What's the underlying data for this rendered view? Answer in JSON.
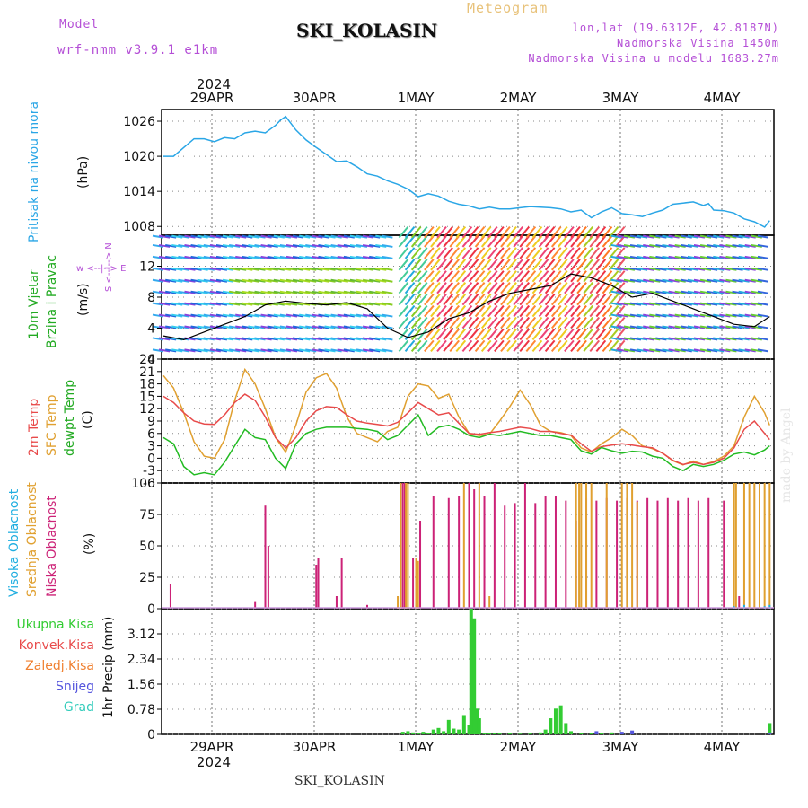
{
  "header": {
    "model_label": "Model",
    "model_version": "wrf-nmm_v3.9.1 e1km",
    "station": "SKI_KOLASIN",
    "meteogram": "Meteogram",
    "lonlat": "lon,lat (19.6312E, 42.8187N)",
    "elevation": "Nadmorska Visina 1450m",
    "model_elevation": "Nadmorska Visina u modelu 1683.27m"
  },
  "footer": {
    "station": "SKI_KOLASIN",
    "made_by": "made by Angel"
  },
  "colors": {
    "pressure": "#2aa6e6",
    "temp2m": "#e84a4a",
    "sfc_temp": "#e0a030",
    "dewpt": "#22bb22",
    "high_cloud": "#20aee0",
    "mid_cloud": "#e0a030",
    "low_cloud": "#cc2277",
    "precip_total": "#33cc33",
    "precip_conv": "#e84a4a",
    "precip_frozen": "#f08030",
    "snow": "#5555dd",
    "hail": "#33ccbb",
    "ylabel_purple": "#b44ed6"
  },
  "chart_data": [
    {
      "type": "line",
      "panel": "pressure",
      "year": "2024",
      "top_ticks": [
        "29APR",
        "30APR",
        "1MAY",
        "2MAY",
        "3MAY",
        "4MAY"
      ],
      "ylabel": "Pritisak na nivou mora",
      "unit": "(hPa)",
      "yticks": [
        1008,
        1014,
        1020,
        1026
      ],
      "ylim": [
        1006.5,
        1028
      ],
      "grid": true,
      "series": [
        {
          "x": [
            0,
            0.1,
            0.2,
            0.3,
            0.4,
            0.5,
            0.6,
            0.7,
            0.8,
            0.9,
            1.0,
            1.1,
            1.15,
            1.2,
            1.3,
            1.4,
            1.5,
            1.6,
            1.7,
            1.8,
            1.9,
            2.0,
            2.1,
            2.2,
            2.3,
            2.4,
            2.5,
            2.6,
            2.7,
            2.8,
            2.9,
            3.0,
            3.1,
            3.2,
            3.3,
            3.4,
            3.5,
            3.6,
            3.7,
            3.8,
            3.9,
            4.0,
            4.1,
            4.2,
            4.3,
            4.4,
            4.5,
            4.6,
            4.7,
            4.8,
            4.9,
            5.0,
            5.1,
            5.2,
            5.3,
            5.35,
            5.4,
            5.5,
            5.6,
            5.7,
            5.8,
            5.9,
            5.95
          ],
          "values": [
            1020,
            1020,
            1021.5,
            1023,
            1023,
            1022.5,
            1023.2,
            1023,
            1024,
            1024.3,
            1024,
            1025.3,
            1026.2,
            1026.8,
            1024.5,
            1022.8,
            1021.5,
            1020.3,
            1019.1,
            1019.2,
            1018.2,
            1017,
            1016.6,
            1015.8,
            1015.2,
            1014.4,
            1013.1,
            1013.6,
            1013.2,
            1012.3,
            1011.8,
            1011.5,
            1011,
            1011.3,
            1011,
            1011,
            1011.2,
            1011.4,
            1011.3,
            1011.2,
            1011,
            1010.5,
            1010.8,
            1009.5,
            1010.5,
            1011.2,
            1010.2,
            1010,
            1009.7,
            1010.3,
            1010.8,
            1011.8,
            1012,
            1012.2,
            1011.6,
            1011.9,
            1010.8,
            1010.7,
            1010.3,
            1009.3,
            1008.8,
            1007.9,
            1009
          ]
        }
      ]
    },
    {
      "type": "line",
      "panel": "wind",
      "ylabel": "10m Vjetar Brzina i Pravac",
      "unit": "(m/s)",
      "yticks": [
        0,
        4,
        8,
        12
      ],
      "ylim": [
        0,
        16
      ],
      "grid": true,
      "series": [
        {
          "x": [
            0,
            0.2,
            0.4,
            0.6,
            0.8,
            1.0,
            1.2,
            1.4,
            1.6,
            1.8,
            2.0,
            2.2,
            2.4,
            2.6,
            2.8,
            3.0,
            3.2,
            3.4,
            3.6,
            3.8,
            4.0,
            4.2,
            4.4,
            4.6,
            4.8,
            5.0,
            5.2,
            5.4,
            5.6,
            5.8,
            5.95
          ],
          "values": [
            3,
            2.5,
            3.5,
            4.5,
            5.5,
            7,
            7.5,
            7.2,
            7,
            7.3,
            6.5,
            4,
            2.8,
            3.5,
            5.2,
            6,
            7.5,
            8.5,
            9,
            9.5,
            11,
            10.5,
            9.5,
            8,
            8.5,
            7.5,
            6.5,
            5.5,
            4.5,
            4.2,
            5.5
          ]
        }
      ]
    },
    {
      "type": "line",
      "panel": "temperature",
      "ylabels": [
        "2m Temp",
        "SFC Temp",
        "dewpt Temp"
      ],
      "unit": "(C)",
      "yticks": [
        -6,
        -3,
        0,
        3,
        6,
        9,
        12,
        15,
        18,
        21,
        24
      ],
      "ylim": [
        -6,
        24
      ],
      "grid": true,
      "series": [
        {
          "name": "2m Temp",
          "x": [
            0,
            0.1,
            0.2,
            0.3,
            0.4,
            0.5,
            0.6,
            0.7,
            0.8,
            0.9,
            1.0,
            1.1,
            1.2,
            1.3,
            1.4,
            1.5,
            1.6,
            1.7,
            1.8,
            1.9,
            2.0,
            2.1,
            2.2,
            2.3,
            2.4,
            2.5,
            2.6,
            2.7,
            2.8,
            2.9,
            3.0,
            3.1,
            3.2,
            3.3,
            3.4,
            3.5,
            3.6,
            3.7,
            3.8,
            3.9,
            4.0,
            4.1,
            4.2,
            4.3,
            4.4,
            4.5,
            4.6,
            4.7,
            4.8,
            4.9,
            5.0,
            5.1,
            5.2,
            5.3,
            5.4,
            5.5,
            5.6,
            5.7,
            5.8,
            5.9,
            5.95
          ],
          "values": [
            15,
            13.5,
            11,
            9,
            8.3,
            8.2,
            10.5,
            13.5,
            15.5,
            14,
            10,
            5,
            2.5,
            5,
            9,
            11.5,
            12.5,
            12.3,
            10.5,
            9,
            8.5,
            8.2,
            7.8,
            8.7,
            11,
            13.5,
            12,
            10.5,
            11,
            8.5,
            6,
            5.8,
            6.2,
            6.5,
            7,
            7.5,
            7.2,
            6.5,
            6.5,
            6,
            5.6,
            3.5,
            1.7,
            2.8,
            3.2,
            3.5,
            3.2,
            2.8,
            2.5,
            1.2,
            -0.5,
            -1.5,
            -1,
            -1.5,
            -1,
            0,
            2.5,
            7,
            9,
            6,
            4.5
          ]
        },
        {
          "name": "SFC Temp",
          "x": [
            0,
            0.1,
            0.2,
            0.3,
            0.4,
            0.5,
            0.6,
            0.7,
            0.8,
            0.9,
            1.0,
            1.1,
            1.2,
            1.3,
            1.4,
            1.5,
            1.6,
            1.7,
            1.8,
            1.9,
            2.0,
            2.1,
            2.2,
            2.3,
            2.4,
            2.5,
            2.6,
            2.7,
            2.8,
            2.9,
            3.0,
            3.1,
            3.2,
            3.3,
            3.4,
            3.5,
            3.6,
            3.7,
            3.8,
            3.9,
            4.0,
            4.1,
            4.2,
            4.3,
            4.4,
            4.5,
            4.6,
            4.7,
            4.8,
            4.9,
            5.0,
            5.1,
            5.2,
            5.3,
            5.4,
            5.5,
            5.6,
            5.7,
            5.8,
            5.9,
            5.95
          ],
          "values": [
            20,
            17,
            11,
            4,
            0.5,
            0,
            4.5,
            14,
            21.5,
            18,
            12,
            5,
            1.5,
            8,
            16,
            19.5,
            20.5,
            17,
            10,
            6,
            5,
            4,
            6.5,
            7.5,
            15,
            18,
            17.5,
            14.5,
            15.5,
            10,
            6,
            5.5,
            5.8,
            9,
            12.5,
            16.5,
            13,
            8,
            6.5,
            6.2,
            5.5,
            2.5,
            1.5,
            3.5,
            5,
            7,
            5.5,
            3,
            2.3,
            1.2,
            -0.6,
            -1.6,
            -0.7,
            -1.5,
            -0.8,
            0.5,
            3,
            10,
            15,
            11,
            8
          ]
        },
        {
          "name": "dewpt Temp",
          "x": [
            0,
            0.1,
            0.2,
            0.3,
            0.4,
            0.5,
            0.6,
            0.7,
            0.8,
            0.9,
            1.0,
            1.1,
            1.2,
            1.3,
            1.4,
            1.5,
            1.6,
            1.7,
            1.8,
            1.9,
            2.0,
            2.1,
            2.2,
            2.3,
            2.4,
            2.5,
            2.6,
            2.7,
            2.8,
            2.9,
            3.0,
            3.1,
            3.2,
            3.3,
            3.4,
            3.5,
            3.6,
            3.7,
            3.8,
            3.9,
            4.0,
            4.1,
            4.2,
            4.3,
            4.4,
            4.5,
            4.6,
            4.7,
            4.8,
            4.9,
            5.0,
            5.1,
            5.2,
            5.3,
            5.4,
            5.5,
            5.6,
            5.7,
            5.8,
            5.9,
            5.95
          ],
          "values": [
            5,
            3.5,
            -2,
            -4,
            -3.5,
            -4,
            -1,
            3,
            7,
            5,
            4.5,
            0,
            -2.5,
            3.5,
            6,
            7,
            7.5,
            7.5,
            7.5,
            7.2,
            7,
            6.5,
            4.5,
            5.5,
            8,
            10.5,
            5.5,
            7.5,
            8,
            7,
            5.5,
            5,
            5.8,
            5.5,
            6,
            6.5,
            6,
            5.5,
            5.5,
            5,
            4.5,
            1.8,
            1,
            2.6,
            1.8,
            1.2,
            1.7,
            1.5,
            0.5,
            0,
            -2,
            -3,
            -1.5,
            -2,
            -1.5,
            -0.5,
            1,
            1.5,
            0.8,
            2,
            3
          ]
        }
      ]
    },
    {
      "type": "bar",
      "panel": "clouds",
      "ylabels": [
        "Visoka Oblacnost",
        "Srednja Oblacnost",
        "Niska Oblacnost"
      ],
      "unit": "(%)",
      "yticks": [
        0,
        25,
        50,
        75,
        100
      ],
      "ylim": [
        0,
        100
      ],
      "grid": true,
      "series": [
        {
          "name": "Niska Oblacnost",
          "x": [
            0.07,
            0.9,
            1.0,
            1.03,
            1.5,
            1.52,
            1.7,
            1.75,
            2.0,
            2.35,
            2.37,
            2.45,
            2.52,
            2.65,
            2.8,
            2.9,
            3.0,
            3.05,
            3.15,
            3.25,
            3.35,
            3.45,
            3.55,
            3.65,
            3.75,
            3.85,
            3.95,
            4.05,
            4.15,
            4.25,
            4.35,
            4.45,
            4.55,
            4.65,
            4.75,
            4.85,
            4.95,
            5.05,
            5.15,
            5.25,
            5.35,
            5.5,
            5.65
          ],
          "values": [
            20,
            6,
            82,
            50,
            35,
            40,
            10,
            40,
            3,
            100,
            100,
            40,
            70,
            90,
            88,
            90,
            100,
            95,
            90,
            100,
            82,
            84,
            100,
            84,
            90,
            90,
            86,
            70,
            88,
            86,
            88,
            86,
            88,
            86,
            88,
            86,
            88,
            86,
            88,
            86,
            88,
            86,
            10
          ]
        },
        {
          "name": "Srednja Oblacnost",
          "x": [
            2.3,
            2.33,
            2.38,
            2.4,
            2.48,
            2.5,
            2.95,
            3.1,
            3.2,
            4.05,
            4.08,
            4.1,
            4.15,
            4.2,
            4.35,
            4.5,
            4.55,
            4.6,
            4.65,
            5.6,
            5.62,
            5.7,
            5.75,
            5.8,
            5.85,
            5.9,
            5.95
          ],
          "values": [
            10,
            100,
            100,
            100,
            40,
            38,
            100,
            100,
            10,
            100,
            100,
            100,
            100,
            100,
            100,
            100,
            100,
            100,
            85,
            100,
            100,
            100,
            100,
            100,
            100,
            100,
            100
          ]
        },
        {
          "name": "Visoka Oblacnost",
          "x": [
            5.6,
            5.7,
            5.9,
            5.95
          ],
          "values": [
            2,
            3,
            2,
            3
          ]
        }
      ]
    },
    {
      "type": "bar",
      "panel": "precip",
      "legend": [
        "Ukupna Kisa",
        "Konvek.Kisa",
        "Zaledj.Kisa",
        "Snijeg",
        "Grad"
      ],
      "ylabel": "1hr Precip (mm)",
      "yticks": [
        0,
        0.78,
        1.56,
        2.34,
        3.12
      ],
      "ylim": [
        0,
        3.9
      ],
      "grid": true,
      "bottom_ticks": [
        "29APR",
        "30APR",
        "1MAY",
        "2MAY",
        "3MAY",
        "4MAY"
      ],
      "year": "2024",
      "series": [
        {
          "name": "Ukupna Kisa",
          "x": [
            2.35,
            2.4,
            2.45,
            2.5,
            2.55,
            2.6,
            2.65,
            2.7,
            2.75,
            2.8,
            2.85,
            2.9,
            2.95,
            3.0,
            3.02,
            3.05,
            3.08,
            3.1,
            3.15,
            3.2,
            3.25,
            3.3,
            3.4,
            3.5,
            3.6,
            3.7,
            3.75,
            3.8,
            3.85,
            3.9,
            3.95,
            4.0,
            4.1,
            4.2,
            4.3,
            4.4,
            4.5,
            4.6,
            5.95
          ],
          "values": [
            0.08,
            0.1,
            0.06,
            0.05,
            0.08,
            0.04,
            0.15,
            0.2,
            0.1,
            0.45,
            0.18,
            0.15,
            0.6,
            0.3,
            3.9,
            3.6,
            0.8,
            0.5,
            0.05,
            0.05,
            0.03,
            0.03,
            0.05,
            0.02,
            0.03,
            0.06,
            0.15,
            0.5,
            0.8,
            0.9,
            0.35,
            0.1,
            0.05,
            0.05,
            0.05,
            0.06,
            0.05,
            0.06,
            0.35
          ]
        },
        {
          "name": "Snijeg",
          "x": [
            4.25,
            4.5,
            4.6,
            5.95
          ],
          "values": [
            0.1,
            0.08,
            0.12,
            0.05
          ]
        }
      ]
    }
  ]
}
